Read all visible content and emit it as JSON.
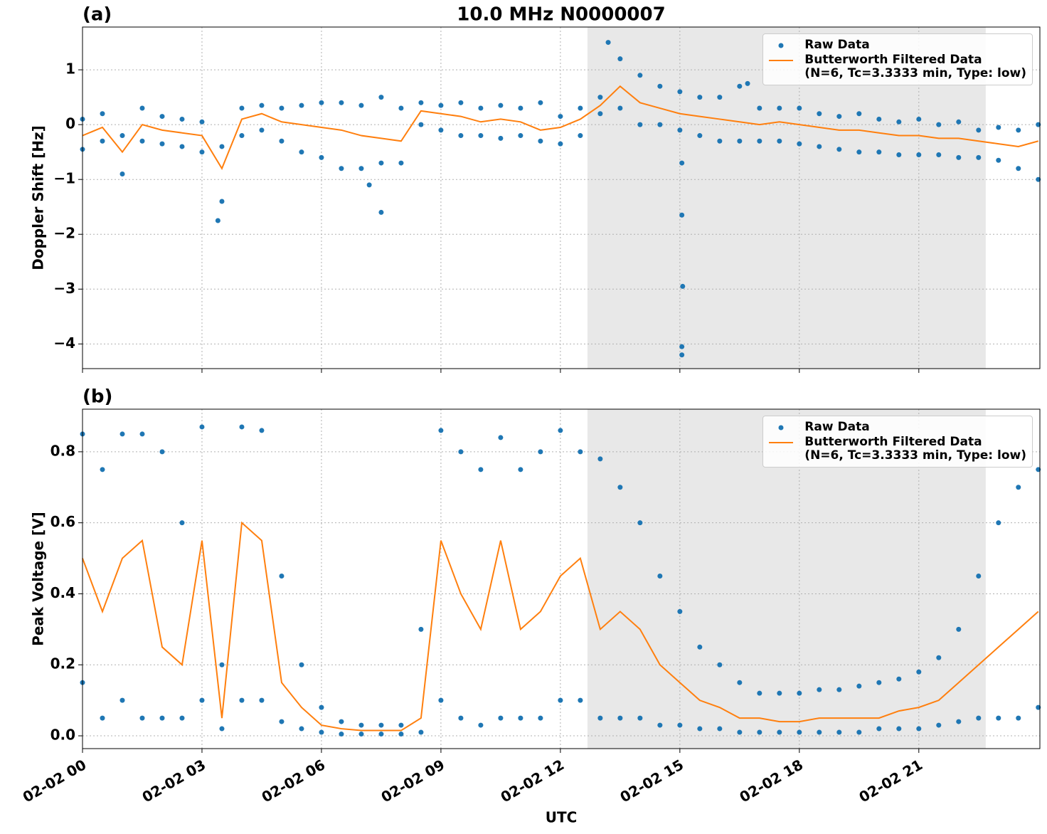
{
  "chart_data": [
    {
      "type": "line",
      "title": "10.0 MHz N0000007",
      "panel_label": "(a)",
      "ylabel": "Doppler Shift [Hz]",
      "xlim": [
        0,
        24.04
      ],
      "ylim": [
        -4.45,
        1.78
      ],
      "yticks": [
        {
          "value": -4,
          "label": "−4"
        },
        {
          "value": -3,
          "label": "−3"
        },
        {
          "value": -2,
          "label": "−2"
        },
        {
          "value": -1,
          "label": "−1"
        },
        0,
        1
      ],
      "grid": true,
      "shaded": [
        12.68,
        22.68
      ],
      "legend": "upper right",
      "series": [
        {
          "name": "Raw Data",
          "type": "scatter",
          "color": "#1f77b4",
          "x": [
            0,
            0.5,
            1,
            1.5,
            2,
            2.5,
            3,
            3.5,
            4,
            4.5,
            5,
            5.5,
            6,
            6.5,
            7,
            7.5,
            8,
            8.5,
            9,
            9.5,
            10,
            10.5,
            11,
            11.5,
            12,
            12.5,
            13,
            13.5,
            14,
            14.5,
            15,
            15.5,
            16,
            16.5,
            17,
            17.5,
            18,
            18.5,
            19,
            19.5,
            20,
            20.5,
            21,
            21.5,
            22,
            22.5,
            23,
            23.5,
            24,
            0,
            0.5,
            1,
            1.5,
            2,
            2.5,
            3,
            3.5,
            4,
            4.5,
            5,
            5.5,
            6,
            6.5,
            7,
            7.5,
            8,
            8.5,
            9,
            9.5,
            10,
            10.5,
            11,
            11.5,
            12,
            12.5,
            13,
            13.5,
            14,
            14.5,
            15,
            15.5,
            16,
            16.5,
            17,
            17.5,
            18,
            18.5,
            19,
            19.5,
            20,
            20.5,
            21,
            21.5,
            22,
            22.5,
            23,
            23.5,
            24,
            3.4,
            7.5,
            7.2,
            13.2,
            15.05,
            15.05,
            15.07,
            15.05,
            15.05,
            16.7
          ],
          "values": [
            0.1,
            0.2,
            -0.2,
            0.3,
            0.15,
            0.1,
            0.05,
            -0.4,
            0.3,
            0.35,
            0.3,
            0.35,
            0.4,
            0.4,
            0.35,
            0.5,
            0.3,
            0.4,
            0.35,
            0.4,
            0.3,
            0.35,
            0.3,
            0.4,
            0.15,
            0.3,
            0.5,
            1.2,
            0.9,
            0.7,
            0.6,
            0.5,
            0.5,
            0.7,
            0.3,
            0.3,
            0.3,
            0.2,
            0.15,
            0.2,
            0.1,
            0.05,
            0.1,
            0.0,
            0.05,
            -0.1,
            -0.05,
            -0.1,
            0.0,
            -0.45,
            -0.3,
            -0.9,
            -0.3,
            -0.35,
            -0.4,
            -0.5,
            -1.4,
            -0.2,
            -0.1,
            -0.3,
            -0.5,
            -0.6,
            -0.8,
            -0.8,
            -0.7,
            -0.7,
            0.0,
            -0.1,
            -0.2,
            -0.2,
            -0.25,
            -0.2,
            -0.3,
            -0.35,
            -0.2,
            0.2,
            0.3,
            0.0,
            0.0,
            -0.1,
            -0.2,
            -0.3,
            -0.3,
            -0.3,
            -0.3,
            -0.35,
            -0.4,
            -0.45,
            -0.5,
            -0.5,
            -0.55,
            -0.55,
            -0.55,
            -0.6,
            -0.6,
            -0.65,
            -0.8,
            -1.0,
            -1.75,
            -1.6,
            -1.1,
            1.5,
            -4.2,
            -4.05,
            -2.95,
            -1.65,
            -0.7,
            0.75
          ]
        },
        {
          "name": "Butterworth Filtered Data\n(N=6, Tc=3.3333 min, Type: low)",
          "type": "line",
          "color": "#ff7f0e",
          "x": [
            0,
            0.5,
            1,
            1.5,
            2,
            2.5,
            3,
            3.5,
            4,
            4.5,
            5,
            5.5,
            6,
            6.5,
            7,
            7.5,
            8,
            8.5,
            9,
            9.5,
            10,
            10.5,
            11,
            11.5,
            12,
            12.5,
            13,
            13.5,
            14,
            14.5,
            15,
            15.5,
            16,
            16.5,
            17,
            17.5,
            18,
            18.5,
            19,
            19.5,
            20,
            20.5,
            21,
            21.5,
            22,
            22.5,
            23,
            23.5,
            24
          ],
          "values": [
            -0.2,
            -0.05,
            -0.5,
            0,
            -0.1,
            -0.15,
            -0.2,
            -0.8,
            0.1,
            0.2,
            0.05,
            0,
            -0.05,
            -0.1,
            -0.2,
            -0.25,
            -0.3,
            0.25,
            0.2,
            0.15,
            0.05,
            0.1,
            0.05,
            -0.1,
            -0.05,
            0.1,
            0.35,
            0.7,
            0.4,
            0.3,
            0.2,
            0.15,
            0.1,
            0.05,
            0,
            0.05,
            0,
            -0.05,
            -0.1,
            -0.1,
            -0.15,
            -0.2,
            -0.2,
            -0.25,
            -0.25,
            -0.3,
            -0.35,
            -0.4,
            -0.3
          ]
        }
      ]
    },
    {
      "type": "line",
      "panel_label": "(b)",
      "ylabel": "Peak Voltage [V]",
      "xlabel": "UTC",
      "xlim": [
        0,
        24.04
      ],
      "ylim": [
        -0.036,
        0.92
      ],
      "xticks": [
        {
          "value": 0,
          "label": "02-02 00"
        },
        {
          "value": 3,
          "label": "02-02 03"
        },
        {
          "value": 6,
          "label": "02-02 06"
        },
        {
          "value": 9,
          "label": "02-02 09"
        },
        {
          "value": 12,
          "label": "02-02 12"
        },
        {
          "value": 15,
          "label": "02-02 15"
        },
        {
          "value": 18,
          "label": "02-02 18"
        },
        {
          "value": 21,
          "label": "02-02 21"
        }
      ],
      "yticks": [
        {
          "value": 0,
          "label": "0.0"
        },
        0.2,
        0.4,
        0.6,
        0.8
      ],
      "grid": true,
      "shaded": [
        12.68,
        22.68
      ],
      "legend": "upper right",
      "series": [
        {
          "name": "Raw Data",
          "type": "scatter",
          "color": "#1f77b4",
          "x": [
            0,
            0.5,
            1,
            1.5,
            2,
            2.5,
            3,
            3.5,
            4,
            4.5,
            5,
            5.5,
            6,
            6.5,
            7,
            7.5,
            8,
            8.5,
            9,
            9.5,
            10,
            10.5,
            11,
            11.5,
            12,
            12.5,
            13,
            13.5,
            14,
            14.5,
            15,
            15.5,
            16,
            16.5,
            17,
            17.5,
            18,
            18.5,
            19,
            19.5,
            20,
            20.5,
            21,
            21.5,
            22,
            22.5,
            23,
            23.5,
            24,
            0,
            0.5,
            1,
            1.5,
            2,
            2.5,
            3,
            3.5,
            4,
            4.5,
            5,
            5.5,
            6,
            6.5,
            7,
            7.5,
            8,
            8.5,
            9,
            9.5,
            10,
            10.5,
            11,
            11.5,
            12,
            12.5,
            13,
            13.5,
            14,
            14.5,
            15,
            15.5,
            16,
            16.5,
            17,
            17.5,
            18,
            18.5,
            19,
            19.5,
            20,
            20.5,
            21,
            21.5,
            22,
            22.5,
            23,
            23.5,
            24
          ],
          "values": [
            0.85,
            0.75,
            0.85,
            0.85,
            0.8,
            0.6,
            0.87,
            0.2,
            0.87,
            0.86,
            0.45,
            0.2,
            0.08,
            0.04,
            0.03,
            0.03,
            0.03,
            0.3,
            0.86,
            0.8,
            0.75,
            0.84,
            0.75,
            0.8,
            0.86,
            0.8,
            0.78,
            0.7,
            0.6,
            0.45,
            0.35,
            0.25,
            0.2,
            0.15,
            0.12,
            0.12,
            0.12,
            0.13,
            0.13,
            0.14,
            0.15,
            0.16,
            0.18,
            0.22,
            0.3,
            0.45,
            0.6,
            0.7,
            0.75,
            0.15,
            0.05,
            0.1,
            0.05,
            0.05,
            0.05,
            0.1,
            0.02,
            0.1,
            0.1,
            0.04,
            0.02,
            0.01,
            0.005,
            0.005,
            0.005,
            0.005,
            0.01,
            0.1,
            0.05,
            0.03,
            0.05,
            0.05,
            0.05,
            0.1,
            0.1,
            0.05,
            0.05,
            0.05,
            0.03,
            0.03,
            0.02,
            0.02,
            0.01,
            0.01,
            0.01,
            0.01,
            0.01,
            0.01,
            0.01,
            0.02,
            0.02,
            0.02,
            0.03,
            0.04,
            0.05,
            0.05,
            0.05,
            0.08
          ]
        },
        {
          "name": "Butterworth Filtered Data\n(N=6, Tc=3.3333 min, Type: low)",
          "type": "line",
          "color": "#ff7f0e",
          "x": [
            0,
            0.5,
            1,
            1.5,
            2,
            2.5,
            3,
            3.5,
            4,
            4.5,
            5,
            5.5,
            6,
            6.5,
            7,
            7.5,
            8,
            8.5,
            9,
            9.5,
            10,
            10.5,
            11,
            11.5,
            12,
            12.5,
            13,
            13.5,
            14,
            14.5,
            15,
            15.5,
            16,
            16.5,
            17,
            17.5,
            18,
            18.5,
            19,
            19.5,
            20,
            20.5,
            21,
            21.5,
            22,
            22.5,
            23,
            23.5,
            24
          ],
          "values": [
            0.5,
            0.35,
            0.5,
            0.55,
            0.25,
            0.2,
            0.55,
            0.05,
            0.6,
            0.55,
            0.15,
            0.08,
            0.03,
            0.02,
            0.015,
            0.015,
            0.015,
            0.05,
            0.55,
            0.4,
            0.3,
            0.55,
            0.3,
            0.35,
            0.45,
            0.5,
            0.3,
            0.35,
            0.3,
            0.2,
            0.15,
            0.1,
            0.08,
            0.05,
            0.05,
            0.04,
            0.04,
            0.05,
            0.05,
            0.05,
            0.05,
            0.07,
            0.08,
            0.1,
            0.15,
            0.2,
            0.25,
            0.3,
            0.35
          ]
        }
      ]
    }
  ]
}
